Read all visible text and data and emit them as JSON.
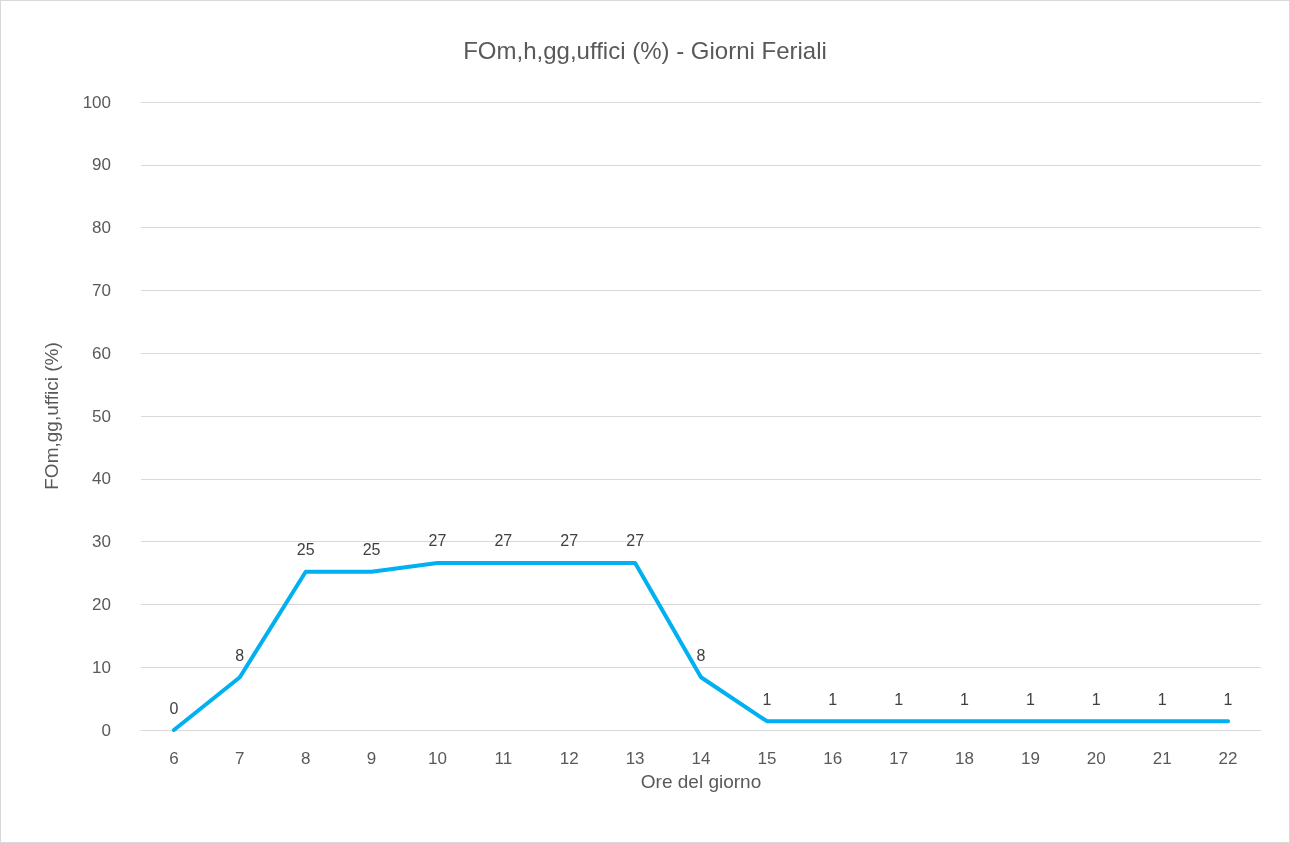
{
  "chart_data": {
    "type": "line",
    "title": "FOm,h,gg,uffici (%) - Giorni Feriali",
    "xlabel": "Ore del giorno",
    "ylabel": "FOm,gg,uffici (%)",
    "categories": [
      "6",
      "7",
      "8",
      "9",
      "10",
      "11",
      "12",
      "13",
      "14",
      "15",
      "16",
      "17",
      "18",
      "19",
      "20",
      "21",
      "22"
    ],
    "series": [
      {
        "color": "#00b0f0",
        "values": [
          0,
          8.4,
          25.2,
          25.2,
          26.6,
          26.6,
          26.6,
          26.6,
          8.4,
          1.4,
          1.4,
          1.4,
          1.4,
          1.4,
          1.4,
          1.4,
          1.4
        ],
        "value_labels": [
          "0",
          "8",
          "25",
          "25",
          "27",
          "27",
          "27",
          "27",
          "8",
          "1",
          "1",
          "1",
          "1",
          "1",
          "1",
          "1",
          "1"
        ]
      }
    ],
    "ylim": [
      0,
      100
    ],
    "yticks": [
      0,
      10,
      20,
      30,
      40,
      50,
      60,
      70,
      80,
      90,
      100
    ],
    "grid": "y",
    "line_style": "solid"
  }
}
